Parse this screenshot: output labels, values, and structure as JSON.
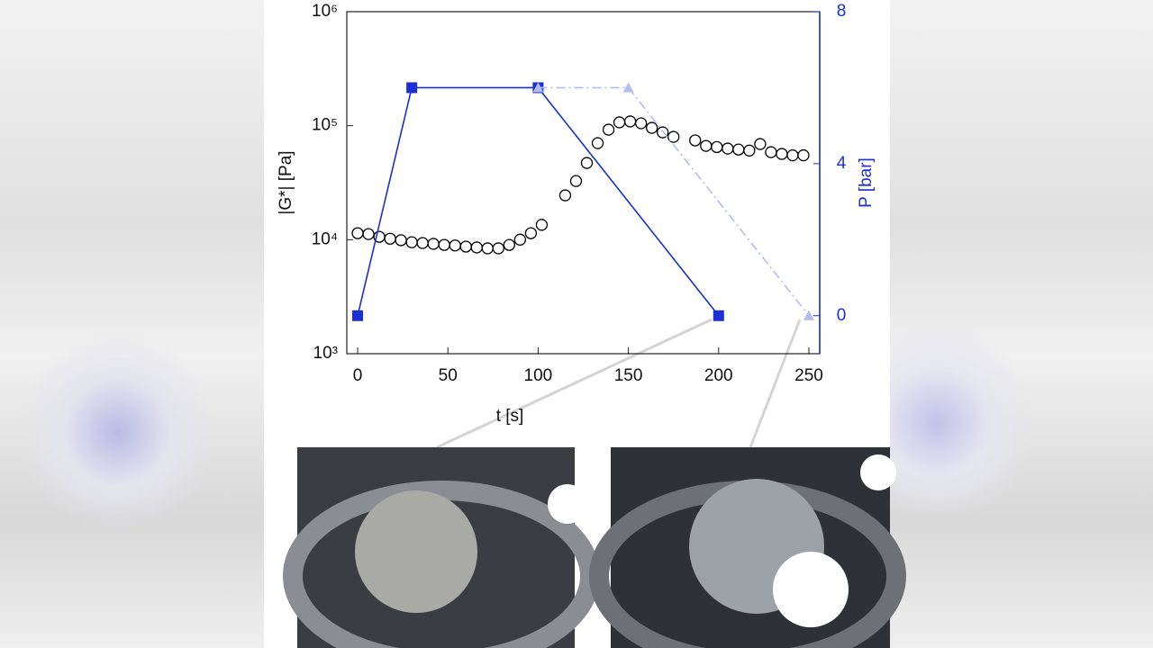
{
  "chart_data": {
    "type": "line",
    "xlabel": "t [s]",
    "ylabel": "|G*| [Pa]",
    "y2label": "P [bar]",
    "log_y": true,
    "xlim": [
      -6,
      256
    ],
    "xticks": [
      0,
      50,
      100,
      150,
      200,
      250
    ],
    "ylim": [
      1000,
      1000000
    ],
    "yticks": [
      {
        "value": 1000,
        "label": "10³"
      },
      {
        "value": 10000,
        "label": "10⁴"
      },
      {
        "value": 100000,
        "label": "10⁵"
      },
      {
        "value": 1000000,
        "label": "10⁶"
      }
    ],
    "y2lim": [
      -1,
      8
    ],
    "y2ticks": [
      0,
      4,
      8
    ],
    "y2color": "#1a2fd6",
    "series": [
      {
        "color": "#000000",
        "marker": "circle",
        "style": "none",
        "axis": "y",
        "x": [
          0,
          6,
          12,
          18,
          24,
          30,
          36,
          42,
          48,
          54,
          60,
          66,
          72,
          78,
          84,
          90,
          96,
          102,
          115,
          121,
          127,
          133,
          139,
          145,
          151,
          157,
          163,
          169,
          175,
          187,
          193,
          199,
          205,
          211,
          217,
          223,
          229,
          235,
          241,
          247
        ],
        "values": [
          11400,
          11200,
          10600,
          10200,
          9900,
          9500,
          9350,
          9200,
          9000,
          8900,
          8700,
          8550,
          8400,
          8400,
          9000,
          10000,
          11400,
          13500,
          24500,
          32700,
          47100,
          70300,
          92300,
          107000,
          109000,
          105000,
          95700,
          87400,
          79800,
          74300,
          66500,
          65000,
          63000,
          61800,
          60500,
          69000,
          58600,
          56500,
          55000,
          55000
        ]
      },
      {
        "color": "#1a2fd6",
        "marker": "square",
        "style": "solid",
        "axis": "y2",
        "x": [
          0,
          30,
          100,
          200
        ],
        "values": [
          0,
          6,
          6,
          0
        ]
      },
      {
        "color": "#b3bcec",
        "marker": "triangle",
        "style": "dashdot",
        "axis": "y2",
        "x": [
          100,
          150,
          250
        ],
        "values": [
          6,
          6,
          0
        ]
      }
    ]
  }
}
